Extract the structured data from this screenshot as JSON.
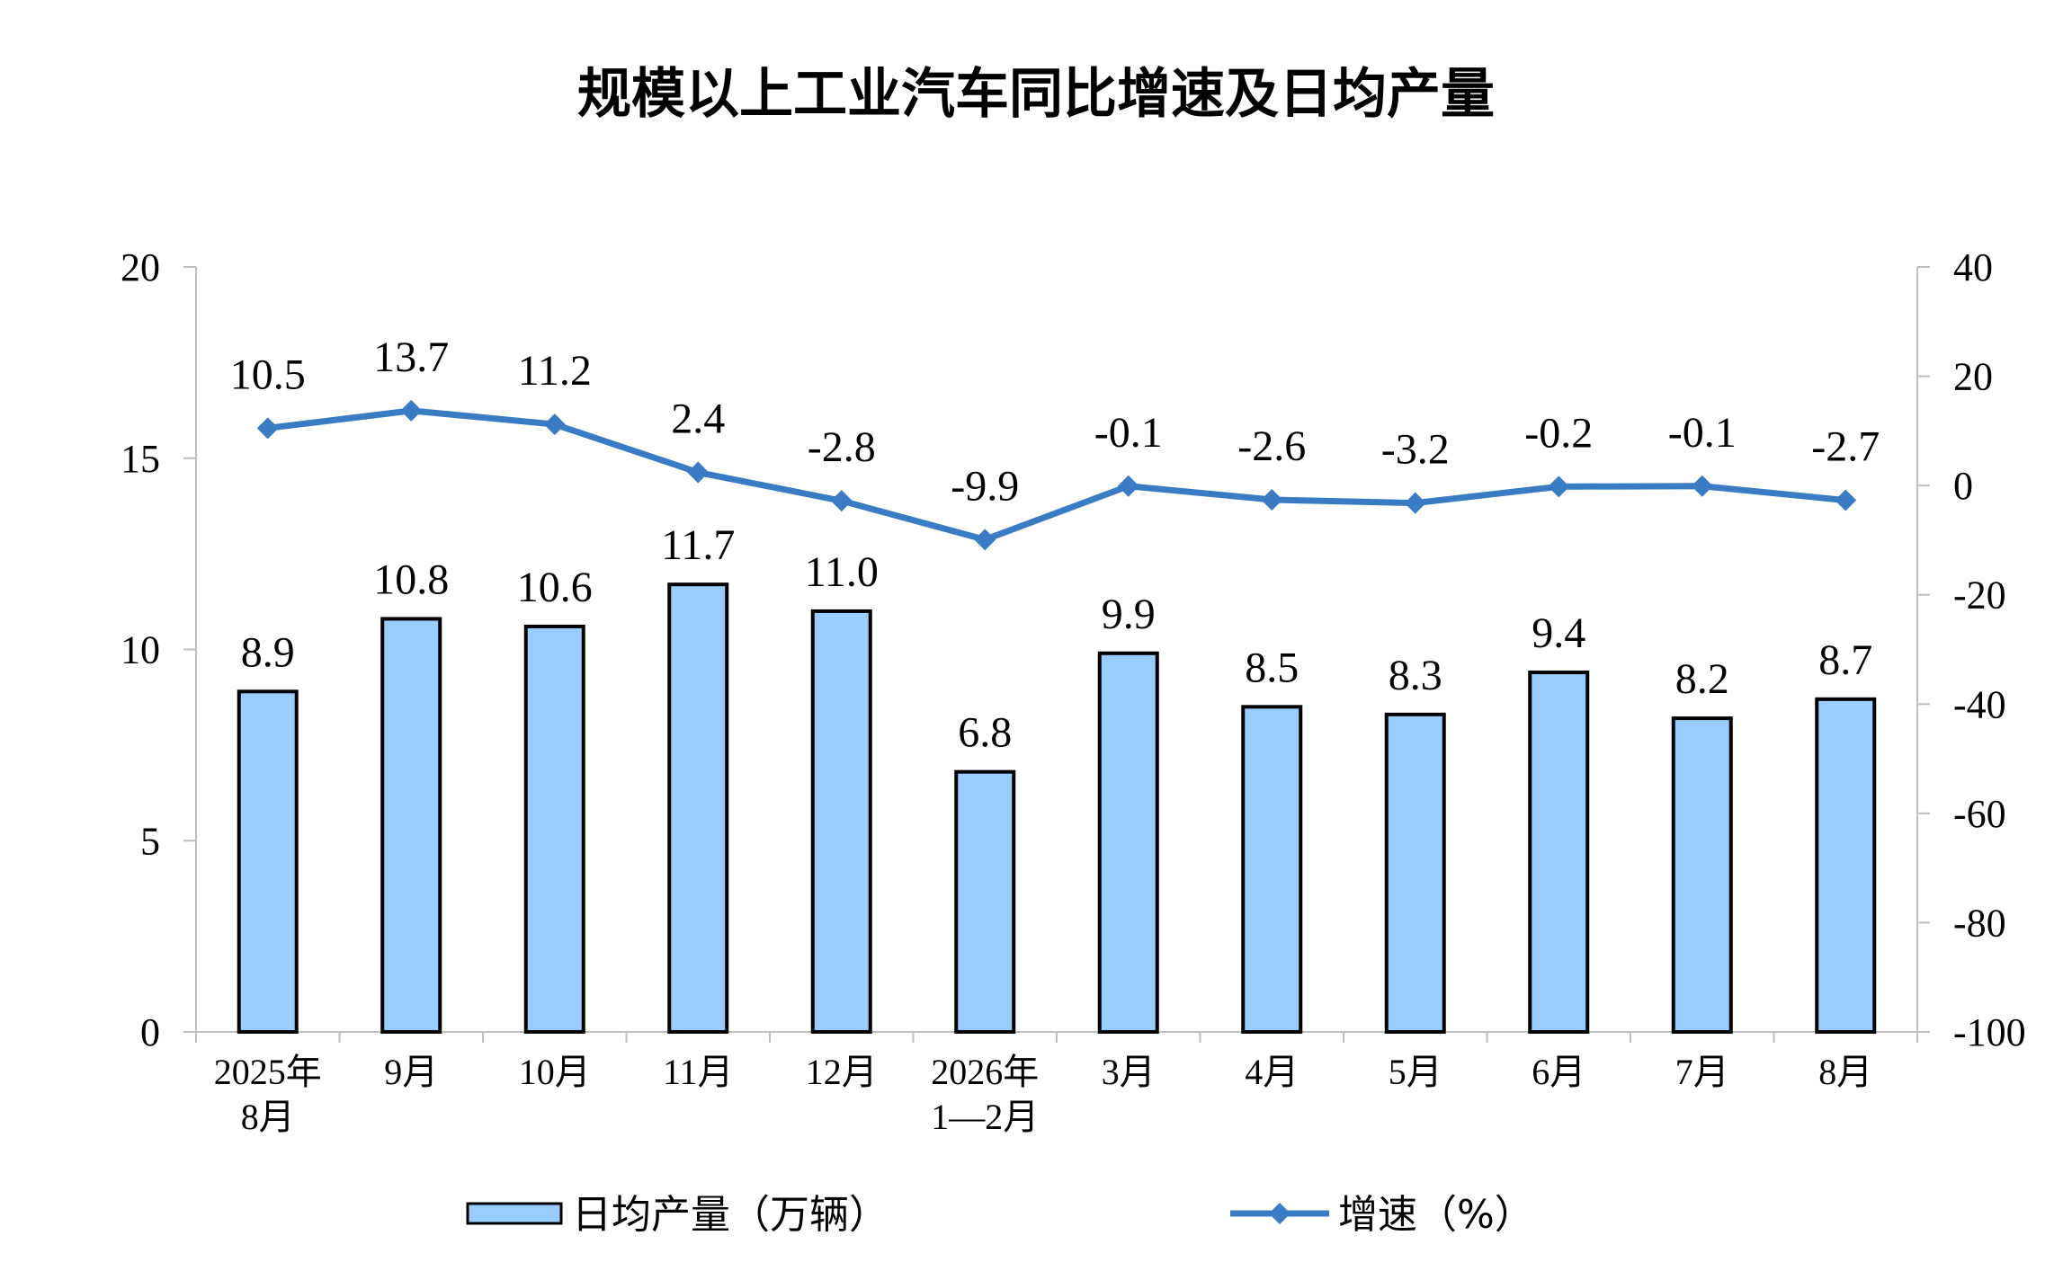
{
  "title": "规模以上工业汽车同比增速及日均产量",
  "chart_data": {
    "type": "bar",
    "categories": [
      [
        "2025年",
        "8月"
      ],
      [
        "9月"
      ],
      [
        "10月"
      ],
      [
        "11月"
      ],
      [
        "12月"
      ],
      [
        "2026年",
        "1—2月"
      ],
      [
        "3月"
      ],
      [
        "4月"
      ],
      [
        "5月"
      ],
      [
        "6月"
      ],
      [
        "7月"
      ],
      [
        "8月"
      ]
    ],
    "series": [
      {
        "name": "日均产量（万辆）",
        "type": "bar",
        "axis": "left",
        "values": [
          8.9,
          10.8,
          10.6,
          11.7,
          11.0,
          6.8,
          9.9,
          8.5,
          8.3,
          9.4,
          8.2,
          8.7
        ],
        "labels": [
          "8.9",
          "10.8",
          "10.6",
          "11.7",
          "11.0",
          "6.8",
          "9.9",
          "8.5",
          "8.3",
          "9.4",
          "8.2",
          "8.7"
        ],
        "color": "#99CCFF"
      },
      {
        "name": "增速（%）",
        "type": "line",
        "axis": "right",
        "values": [
          10.5,
          13.7,
          11.2,
          2.4,
          -2.8,
          -9.9,
          -0.1,
          -2.6,
          -3.2,
          -0.2,
          -0.1,
          -2.7
        ],
        "labels": [
          "10.5",
          "13.7",
          "11.2",
          "2.4",
          "-2.8",
          "-9.9",
          "-0.1",
          "-2.6",
          "-3.2",
          "-0.2",
          "-0.1",
          "-2.7"
        ],
        "color": "#3A7CC4"
      }
    ],
    "y_left": {
      "ylim": [
        0,
        20
      ],
      "ticks": [
        "0",
        "5",
        "10",
        "15",
        "20"
      ]
    },
    "y_right": {
      "ylim": [
        -100,
        40
      ],
      "ticks": [
        "-100",
        "-80",
        "-60",
        "-40",
        "-20",
        "0",
        "20",
        "40"
      ]
    },
    "grid": false,
    "legend_position": "bottom"
  }
}
